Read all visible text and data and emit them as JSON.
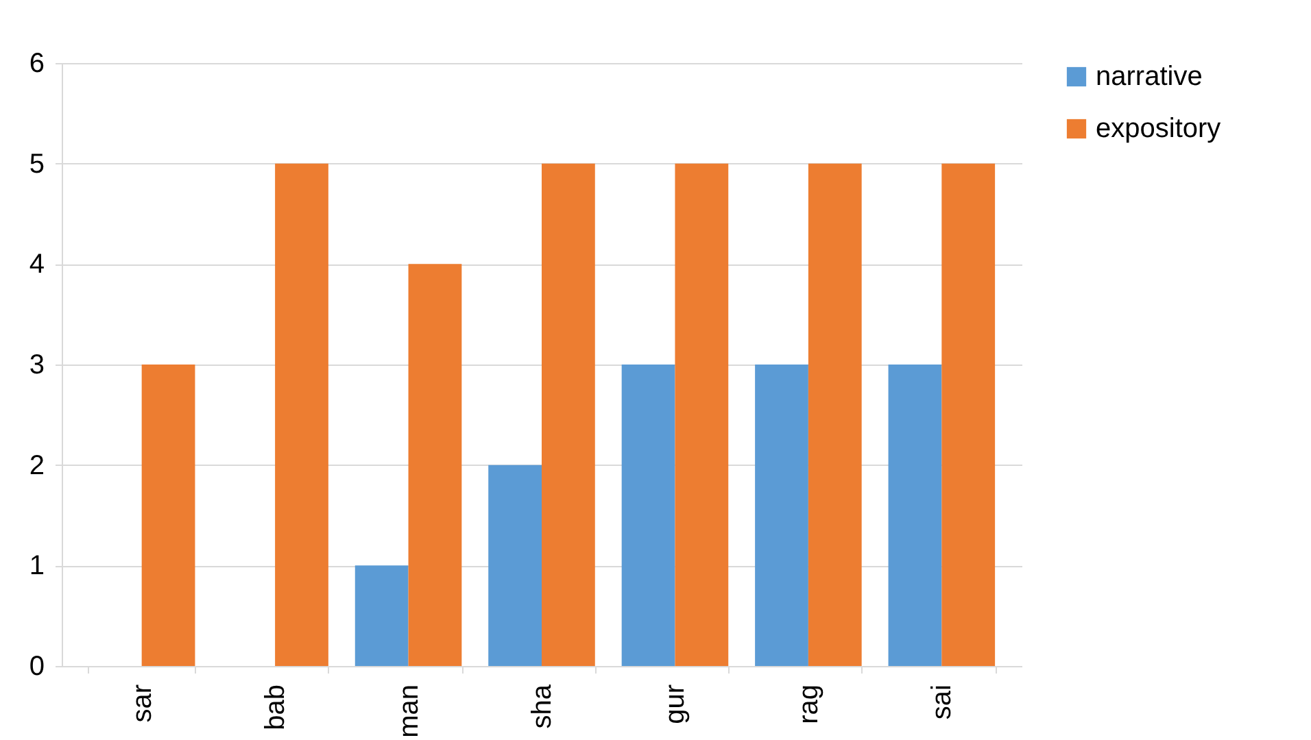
{
  "chart_data": {
    "type": "bar",
    "categories": [
      "sar",
      "bab",
      "man",
      "sha",
      "gur",
      "rag",
      "sai"
    ],
    "series": [
      {
        "name": "narrative",
        "color": "#5b9bd5",
        "values": [
          0,
          0,
          1,
          2,
          3,
          3,
          3
        ]
      },
      {
        "name": "expository",
        "color": "#ed7d31",
        "values": [
          3,
          5,
          4,
          5,
          5,
          5,
          5
        ]
      }
    ],
    "ylim": [
      0,
      6
    ],
    "yticks": [
      0,
      1,
      2,
      3,
      4,
      5,
      6
    ],
    "grid": "y",
    "legend": "right"
  }
}
